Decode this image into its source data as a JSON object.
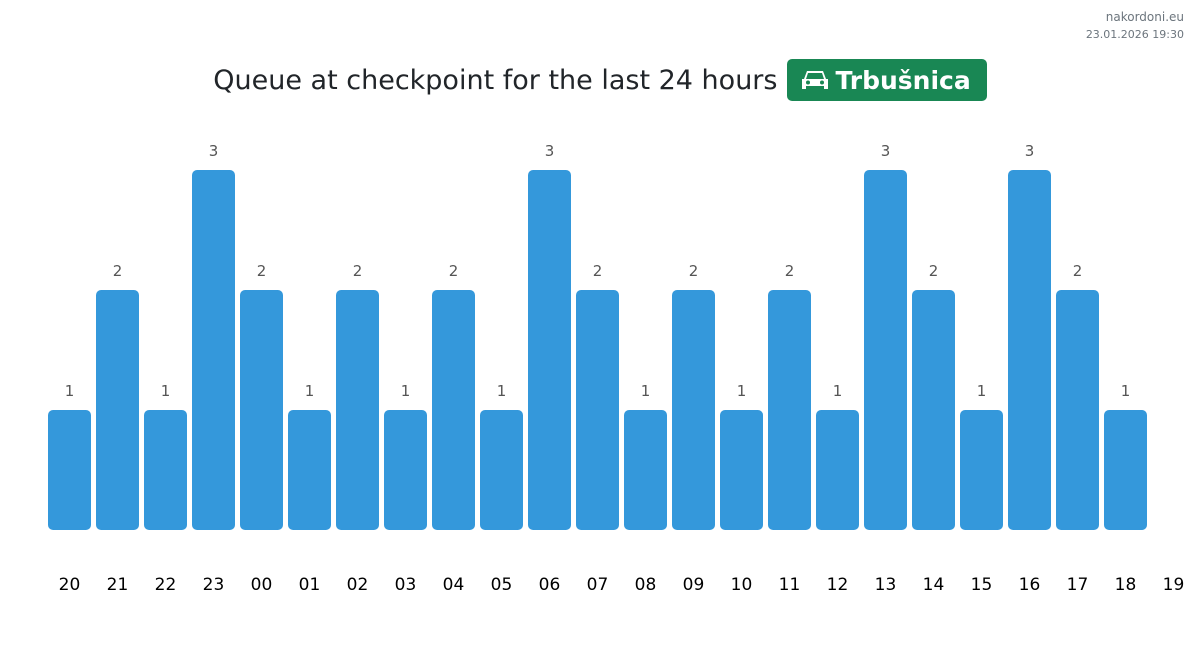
{
  "site": {
    "name": "nakordoni.eu",
    "datetime": "23.01.2026 19:30"
  },
  "header": {
    "title": "Queue at checkpoint for the last 24 hours",
    "checkpoint": "Trbušnica",
    "checkpoint_icon": "car-icon",
    "badge_color": "#198754"
  },
  "chart_data": {
    "type": "bar",
    "title": "Queue at checkpoint for the last 24 hours",
    "categories": [
      "20",
      "21",
      "22",
      "23",
      "00",
      "01",
      "02",
      "03",
      "04",
      "05",
      "06",
      "07",
      "08",
      "09",
      "10",
      "11",
      "12",
      "13",
      "14",
      "15",
      "16",
      "17",
      "18",
      "19"
    ],
    "values": [
      1,
      2,
      1,
      3,
      2,
      1,
      2,
      1,
      2,
      1,
      3,
      2,
      1,
      2,
      1,
      2,
      1,
      3,
      2,
      1,
      3,
      2,
      1,
      null
    ],
    "ylim": [
      0,
      3
    ],
    "bar_color": "#3498db",
    "grid": false
  }
}
